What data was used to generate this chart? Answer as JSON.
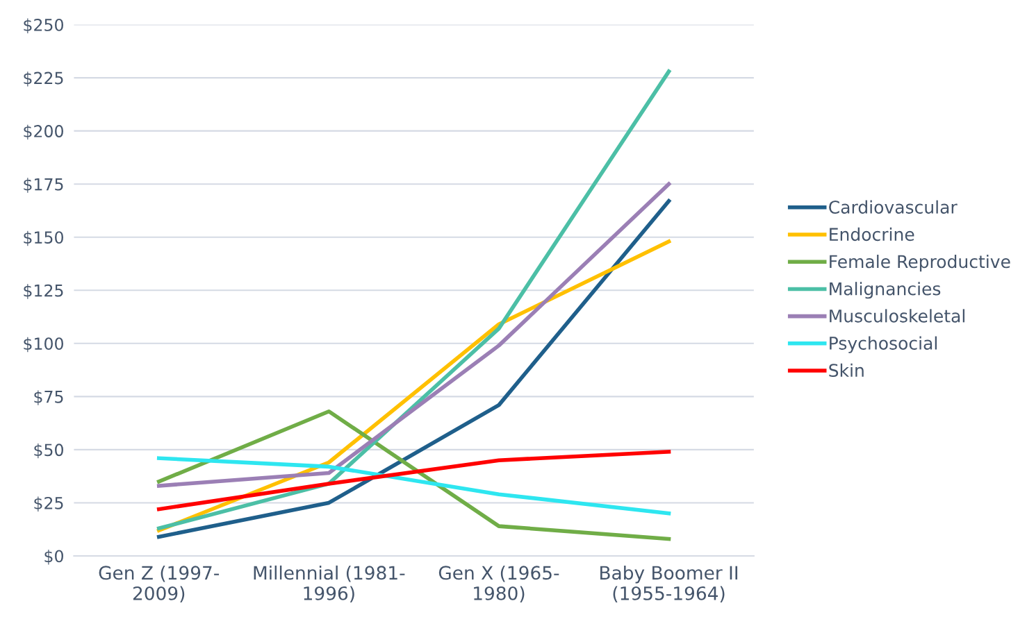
{
  "chart_data": {
    "type": "line",
    "categories": [
      "Gen Z (1997-\n2009)",
      "Millennial (1981-\n1996)",
      "Gen X (1965-\n1980)",
      "Baby Boomer II\n(1955-1964)"
    ],
    "series": [
      {
        "name": "Cardiovascular",
        "color": "#1f5f8b",
        "values": [
          9,
          25,
          71,
          167
        ]
      },
      {
        "name": "Endocrine",
        "color": "#ffc000",
        "values": [
          12,
          44,
          109,
          148
        ]
      },
      {
        "name": "Female Reproductive",
        "color": "#70ad47",
        "values": [
          35,
          68,
          14,
          8
        ]
      },
      {
        "name": "Malignancies",
        "color": "#4cbfa6",
        "values": [
          13,
          34,
          107,
          228
        ]
      },
      {
        "name": "Musculoskeletal",
        "color": "#9b7fb5",
        "values": [
          33,
          39,
          99,
          175
        ]
      },
      {
        "name": "Psychosocial",
        "color": "#2ee6f0",
        "values": [
          46,
          42,
          29,
          20
        ]
      },
      {
        "name": "Skin",
        "color": "#ff0000",
        "values": [
          22,
          34,
          45,
          49
        ]
      }
    ],
    "ylim": [
      0,
      250
    ],
    "yticks": [
      {
        "value": 0,
        "label": "$0"
      },
      {
        "value": 25,
        "label": "$25"
      },
      {
        "value": 50,
        "label": "$50"
      },
      {
        "value": 75,
        "label": "$75"
      },
      {
        "value": 100,
        "label": "$100"
      },
      {
        "value": 125,
        "label": "$125"
      },
      {
        "value": 150,
        "label": "$150"
      },
      {
        "value": 175,
        "label": "$175"
      },
      {
        "value": 200,
        "label": "$200"
      },
      {
        "value": 225,
        "label": "$225"
      },
      {
        "value": 250,
        "label": "$250"
      }
    ],
    "grid": "y",
    "legend": "right",
    "marker": "none",
    "line_style": "solid"
  }
}
